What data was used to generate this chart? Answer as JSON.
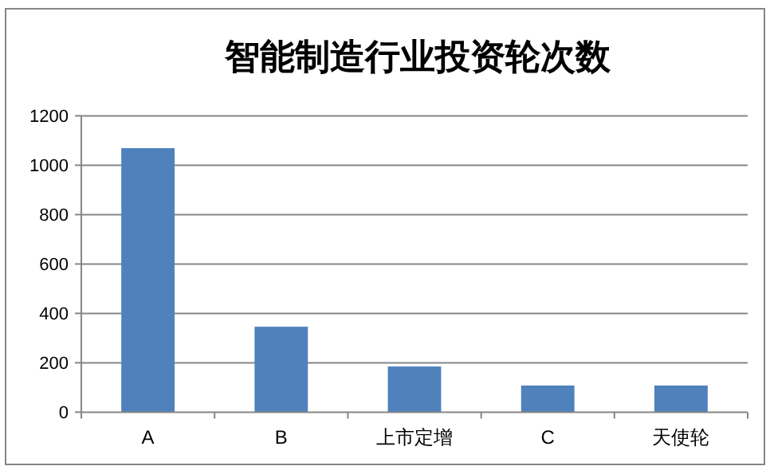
{
  "chart_data": {
    "type": "bar",
    "title": "智能制造行业投资轮次数",
    "categories": [
      "A",
      "B",
      "上市定增",
      "C",
      "天使轮"
    ],
    "values": [
      1069,
      346,
      185,
      108,
      108
    ],
    "color": "#4f81bd",
    "ylim": [
      0,
      1200
    ],
    "yticks": [
      0,
      200,
      400,
      600,
      800,
      1000,
      1200
    ],
    "grid": "y"
  }
}
